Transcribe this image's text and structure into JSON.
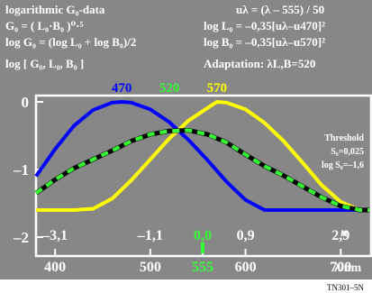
{
  "colors": {
    "background": "#878787",
    "plot_area": "#878787",
    "white": "#ffffff",
    "green": "#33ff33",
    "blue": "#0000ff",
    "yellow": "#ffff00",
    "footer": "#ffffff",
    "footer_text": "#000000"
  },
  "header": {
    "line1_left": "logarithmic G₀-data",
    "line2_left": "G₀ = ( L₀·B₀ )⁰·⁵",
    "line3_left": "log G₀ = (log L₀ + log B₀)/2",
    "line4_left": "log [ G₀, L₀, B₀ ]",
    "line1_right": "uλ = (λ – 555) / 50",
    "line2_right": "log L₀ = –0,35[uλ–u470]²",
    "line3_right": "log B₀ = –0,35[uλ–u570]²",
    "line4_right": "Adaptation: λL,B=520"
  },
  "threshold": {
    "title": "Threshold",
    "s0": "S₀=0,025",
    "logs0": "log S₀=–1,6"
  },
  "footer": {
    "code": "TN301–5N"
  },
  "chart_data": {
    "type": "line",
    "x_unit_label": "λ/nm",
    "u_label": "u",
    "x_range_nm": [
      380,
      730
    ],
    "ylim": [
      -2,
      0.15
    ],
    "y_ticks": [
      {
        "value": 0,
        "label": "0"
      },
      {
        "value": -1,
        "label": "–1"
      },
      {
        "value": -2,
        "label": "–2"
      }
    ],
    "x_ticks_nm": [
      {
        "value": 400,
        "label": "400",
        "color": "#ffffff"
      },
      {
        "value": 500,
        "label": "500",
        "color": "#ffffff"
      },
      {
        "value": 555,
        "label": "555",
        "color": "#33ff33"
      },
      {
        "value": 600,
        "label": "600",
        "color": "#ffffff"
      },
      {
        "value": 700,
        "label": "700",
        "color": "#ffffff"
      }
    ],
    "u_ticks": [
      {
        "nm": 400,
        "label": "–3,1",
        "color": "#ffffff"
      },
      {
        "nm": 500,
        "label": "–1,1",
        "color": "#ffffff"
      },
      {
        "nm": 555,
        "label": "0,0",
        "color": "#33ff33"
      },
      {
        "nm": 600,
        "label": "0,9",
        "color": "#ffffff"
      },
      {
        "nm": 700,
        "label": "2,9",
        "color": "#ffffff"
      }
    ],
    "peak_labels": [
      {
        "nm": 470,
        "label": "470",
        "color": "#0000ff"
      },
      {
        "nm": 520,
        "label": "520",
        "color": "#33ff33"
      },
      {
        "nm": 570,
        "label": "570",
        "color": "#ffff00"
      }
    ],
    "series": [
      {
        "color": "#0000ff",
        "style": "solid",
        "points": [
          [
            380,
            -1.1
          ],
          [
            400,
            -0.7
          ],
          [
            420,
            -0.35
          ],
          [
            440,
            -0.12
          ],
          [
            460,
            -0.01
          ],
          [
            470,
            0.0
          ],
          [
            480,
            -0.01
          ],
          [
            500,
            -0.11
          ],
          [
            520,
            -0.3
          ],
          [
            540,
            -0.56
          ],
          [
            560,
            -0.86
          ],
          [
            580,
            -1.18
          ],
          [
            600,
            -1.45
          ],
          [
            620,
            -1.6
          ],
          [
            640,
            -1.6
          ],
          [
            660,
            -1.6
          ],
          [
            680,
            -1.6
          ],
          [
            700,
            -1.6
          ],
          [
            730,
            -1.6
          ]
        ]
      },
      {
        "color": "#ffff00",
        "style": "solid",
        "points": [
          [
            380,
            -1.6
          ],
          [
            420,
            -1.6
          ],
          [
            440,
            -1.58
          ],
          [
            460,
            -1.43
          ],
          [
            480,
            -1.16
          ],
          [
            500,
            -0.85
          ],
          [
            520,
            -0.54
          ],
          [
            540,
            -0.28
          ],
          [
            560,
            -0.09
          ],
          [
            570,
            0.0
          ],
          [
            580,
            -0.01
          ],
          [
            600,
            -0.11
          ],
          [
            620,
            -0.31
          ],
          [
            640,
            -0.58
          ],
          [
            660,
            -0.9
          ],
          [
            680,
            -1.23
          ],
          [
            700,
            -1.48
          ],
          [
            720,
            -1.6
          ],
          [
            730,
            -1.6
          ]
        ]
      },
      {
        "color": "#33ff33",
        "style": "dashed",
        "points": [
          [
            380,
            -1.35
          ],
          [
            400,
            -1.15
          ],
          [
            420,
            -0.98
          ],
          [
            440,
            -0.85
          ],
          [
            460,
            -0.72
          ],
          [
            480,
            -0.58
          ],
          [
            500,
            -0.48
          ],
          [
            520,
            -0.43
          ],
          [
            540,
            -0.42
          ],
          [
            560,
            -0.48
          ],
          [
            580,
            -0.6
          ],
          [
            600,
            -0.78
          ],
          [
            620,
            -0.95
          ],
          [
            640,
            -1.09
          ],
          [
            660,
            -1.25
          ],
          [
            680,
            -1.41
          ],
          [
            700,
            -1.54
          ],
          [
            720,
            -1.6
          ],
          [
            730,
            -1.6
          ]
        ]
      }
    ]
  }
}
